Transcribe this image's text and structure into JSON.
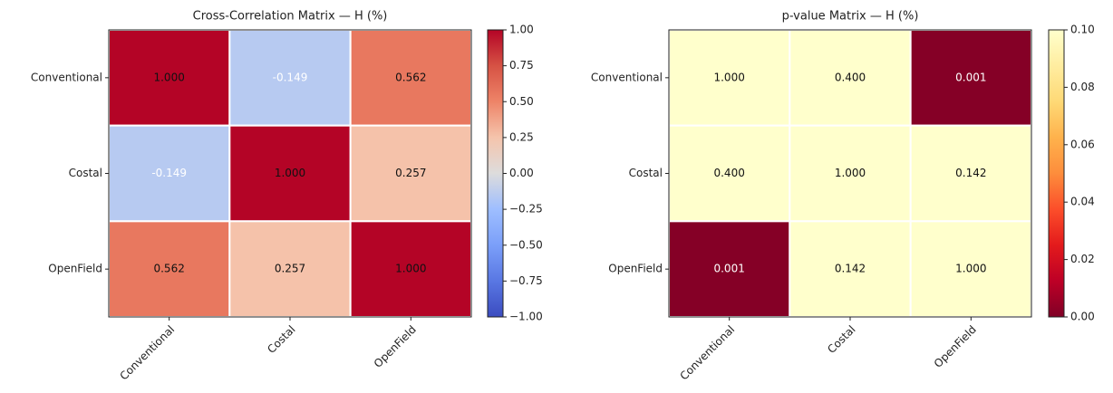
{
  "chart_data": [
    {
      "type": "heatmap",
      "title": "Cross-Correlation Matrix — H (%)",
      "x_categories": [
        "Conventional",
        "Costal",
        "OpenField"
      ],
      "y_categories": [
        "Conventional",
        "Costal",
        "OpenField"
      ],
      "values": [
        [
          1,
          -0.149,
          0.562
        ],
        [
          -0.149,
          1,
          0.257
        ],
        [
          0.562,
          0.257,
          1
        ]
      ],
      "value_labels": [
        [
          "1.000",
          "-0.149",
          "0.562"
        ],
        [
          "-0.149",
          "1.000",
          "0.257"
        ],
        [
          "0.562",
          "0.257",
          "1.000"
        ]
      ],
      "colormap": "coolwarm",
      "clim": [
        -1,
        1
      ],
      "cticks": [
        {
          "value": 1,
          "label": "1.00"
        },
        {
          "value": 0.75,
          "label": "0.75"
        },
        {
          "value": 0.5,
          "label": "0.50"
        },
        {
          "value": 0.25,
          "label": "0.25"
        },
        {
          "value": 0,
          "label": "0.00"
        },
        {
          "value": -0.25,
          "label": "−0.25"
        },
        {
          "value": -0.5,
          "label": "−0.50"
        },
        {
          "value": -0.75,
          "label": "−0.75"
        },
        {
          "value": -1,
          "label": "−1.00"
        }
      ]
    },
    {
      "type": "heatmap",
      "title": "p-value Matrix — H (%)",
      "x_categories": [
        "Conventional",
        "Costal",
        "OpenField"
      ],
      "y_categories": [
        "Conventional",
        "Costal",
        "OpenField"
      ],
      "values": [
        [
          1,
          0.4,
          0.001
        ],
        [
          0.4,
          1,
          0.142
        ],
        [
          0.001,
          0.142,
          1
        ]
      ],
      "value_labels": [
        [
          "1.000",
          "0.400",
          "0.001"
        ],
        [
          "0.400",
          "1.000",
          "0.142"
        ],
        [
          "0.001",
          "0.142",
          "1.000"
        ]
      ],
      "colormap": "YlOrRd_r",
      "clim": [
        0,
        0.1
      ],
      "cticks": [
        {
          "value": 0.1,
          "label": "0.10"
        },
        {
          "value": 0.08,
          "label": "0.08"
        },
        {
          "value": 0.06,
          "label": "0.06"
        },
        {
          "value": 0.04,
          "label": "0.04"
        },
        {
          "value": 0.02,
          "label": "0.02"
        },
        {
          "value": 0,
          "label": "0.00"
        }
      ]
    }
  ]
}
